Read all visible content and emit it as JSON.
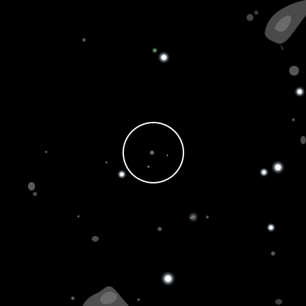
{
  "image": {
    "background_color": "#000000",
    "marker_color": "#ffffff",
    "star_color": "#ffffff",
    "star_halo_color": "#9aa4ae",
    "nebula_color": "#5c5c5c"
  }
}
